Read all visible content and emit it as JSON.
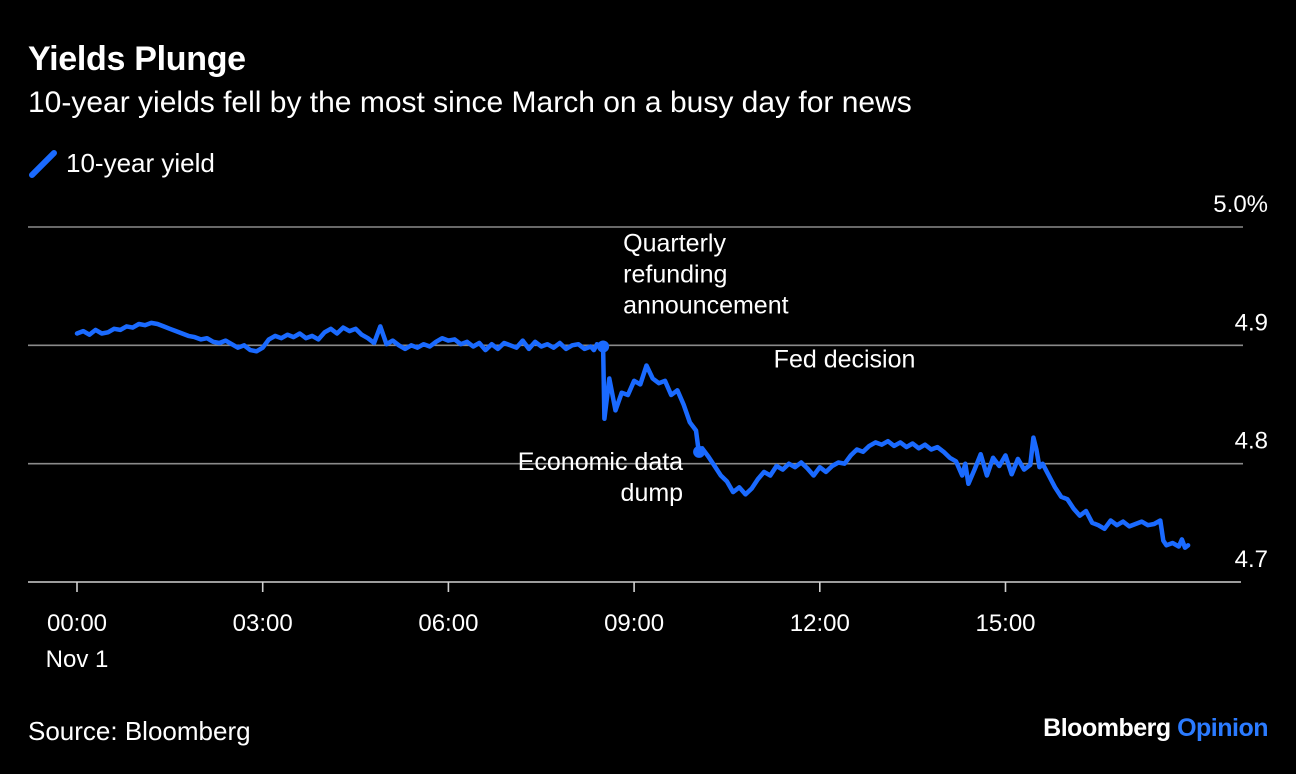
{
  "chart_data": {
    "type": "line",
    "title": "Yields Plunge",
    "subtitle": "10-year yields fell by the most since March on a busy day for news",
    "series": [
      {
        "name": "10-year yield",
        "color": "#1a6aff",
        "points": [
          [
            0.0,
            4.91
          ],
          [
            0.1,
            4.912
          ],
          [
            0.2,
            4.909
          ],
          [
            0.3,
            4.913
          ],
          [
            0.4,
            4.91
          ],
          [
            0.5,
            4.911
          ],
          [
            0.6,
            4.914
          ],
          [
            0.7,
            4.913
          ],
          [
            0.8,
            4.916
          ],
          [
            0.9,
            4.915
          ],
          [
            1.0,
            4.918
          ],
          [
            1.1,
            4.917
          ],
          [
            1.2,
            4.919
          ],
          [
            1.3,
            4.918
          ],
          [
            1.4,
            4.916
          ],
          [
            1.5,
            4.914
          ],
          [
            1.6,
            4.912
          ],
          [
            1.7,
            4.91
          ],
          [
            1.8,
            4.908
          ],
          [
            1.9,
            4.907
          ],
          [
            2.0,
            4.905
          ],
          [
            2.1,
            4.906
          ],
          [
            2.2,
            4.903
          ],
          [
            2.3,
            4.902
          ],
          [
            2.4,
            4.904
          ],
          [
            2.5,
            4.901
          ],
          [
            2.6,
            4.898
          ],
          [
            2.7,
            4.9
          ],
          [
            2.8,
            4.896
          ],
          [
            2.9,
            4.895
          ],
          [
            3.0,
            4.898
          ],
          [
            3.1,
            4.905
          ],
          [
            3.2,
            4.908
          ],
          [
            3.3,
            4.906
          ],
          [
            3.4,
            4.909
          ],
          [
            3.5,
            4.907
          ],
          [
            3.6,
            4.91
          ],
          [
            3.7,
            4.906
          ],
          [
            3.8,
            4.908
          ],
          [
            3.9,
            4.905
          ],
          [
            4.0,
            4.911
          ],
          [
            4.1,
            4.914
          ],
          [
            4.2,
            4.91
          ],
          [
            4.3,
            4.915
          ],
          [
            4.4,
            4.912
          ],
          [
            4.5,
            4.914
          ],
          [
            4.6,
            4.909
          ],
          [
            4.7,
            4.906
          ],
          [
            4.8,
            4.902
          ],
          [
            4.9,
            4.916
          ],
          [
            5.0,
            4.901
          ],
          [
            5.1,
            4.904
          ],
          [
            5.2,
            4.9
          ],
          [
            5.3,
            4.897
          ],
          [
            5.4,
            4.9
          ],
          [
            5.5,
            4.898
          ],
          [
            5.6,
            4.901
          ],
          [
            5.7,
            4.899
          ],
          [
            5.8,
            4.903
          ],
          [
            5.9,
            4.906
          ],
          [
            6.0,
            4.904
          ],
          [
            6.1,
            4.905
          ],
          [
            6.2,
            4.901
          ],
          [
            6.3,
            4.903
          ],
          [
            6.4,
            4.899
          ],
          [
            6.5,
            4.902
          ],
          [
            6.6,
            4.896
          ],
          [
            6.7,
            4.901
          ],
          [
            6.8,
            4.897
          ],
          [
            6.9,
            4.902
          ],
          [
            7.0,
            4.9
          ],
          [
            7.1,
            4.898
          ],
          [
            7.2,
            4.904
          ],
          [
            7.3,
            4.897
          ],
          [
            7.4,
            4.903
          ],
          [
            7.5,
            4.899
          ],
          [
            7.6,
            4.901
          ],
          [
            7.7,
            4.898
          ],
          [
            7.8,
            4.902
          ],
          [
            7.9,
            4.897
          ],
          [
            8.0,
            4.9
          ],
          [
            8.1,
            4.901
          ],
          [
            8.2,
            4.897
          ],
          [
            8.3,
            4.899
          ],
          [
            8.35,
            4.896
          ],
          [
            8.4,
            4.901
          ],
          [
            8.45,
            4.898
          ],
          [
            8.5,
            4.899
          ],
          [
            8.52,
            4.838
          ],
          [
            8.6,
            4.872
          ],
          [
            8.7,
            4.845
          ],
          [
            8.8,
            4.86
          ],
          [
            8.9,
            4.858
          ],
          [
            9.0,
            4.87
          ],
          [
            9.1,
            4.867
          ],
          [
            9.2,
            4.883
          ],
          [
            9.3,
            4.872
          ],
          [
            9.4,
            4.868
          ],
          [
            9.5,
            4.87
          ],
          [
            9.6,
            4.858
          ],
          [
            9.7,
            4.862
          ],
          [
            9.8,
            4.85
          ],
          [
            9.9,
            4.835
          ],
          [
            10.0,
            4.828
          ],
          [
            10.05,
            4.808
          ],
          [
            10.1,
            4.813
          ],
          [
            10.2,
            4.806
          ],
          [
            10.3,
            4.798
          ],
          [
            10.4,
            4.79
          ],
          [
            10.5,
            4.785
          ],
          [
            10.6,
            4.776
          ],
          [
            10.7,
            4.78
          ],
          [
            10.8,
            4.774
          ],
          [
            10.9,
            4.779
          ],
          [
            11.0,
            4.787
          ],
          [
            11.1,
            4.793
          ],
          [
            11.2,
            4.79
          ],
          [
            11.3,
            4.798
          ],
          [
            11.4,
            4.795
          ],
          [
            11.5,
            4.8
          ],
          [
            11.6,
            4.797
          ],
          [
            11.7,
            4.801
          ],
          [
            11.8,
            4.796
          ],
          [
            11.9,
            4.79
          ],
          [
            12.0,
            4.797
          ],
          [
            12.1,
            4.793
          ],
          [
            12.2,
            4.798
          ],
          [
            12.3,
            4.801
          ],
          [
            12.4,
            4.8
          ],
          [
            12.5,
            4.807
          ],
          [
            12.6,
            4.812
          ],
          [
            12.7,
            4.81
          ],
          [
            12.8,
            4.815
          ],
          [
            12.9,
            4.818
          ],
          [
            13.0,
            4.816
          ],
          [
            13.1,
            4.819
          ],
          [
            13.2,
            4.815
          ],
          [
            13.3,
            4.818
          ],
          [
            13.4,
            4.814
          ],
          [
            13.5,
            4.817
          ],
          [
            13.6,
            4.813
          ],
          [
            13.7,
            4.816
          ],
          [
            13.8,
            4.812
          ],
          [
            13.9,
            4.814
          ],
          [
            14.0,
            4.81
          ],
          [
            14.1,
            4.805
          ],
          [
            14.2,
            4.802
          ],
          [
            14.3,
            4.79
          ],
          [
            14.35,
            4.8
          ],
          [
            14.4,
            4.783
          ],
          [
            14.5,
            4.795
          ],
          [
            14.6,
            4.808
          ],
          [
            14.7,
            4.79
          ],
          [
            14.8,
            4.805
          ],
          [
            14.9,
            4.798
          ],
          [
            15.0,
            4.807
          ],
          [
            15.1,
            4.791
          ],
          [
            15.2,
            4.804
          ],
          [
            15.3,
            4.795
          ],
          [
            15.4,
            4.799
          ],
          [
            15.45,
            4.822
          ],
          [
            15.5,
            4.812
          ],
          [
            15.55,
            4.797
          ],
          [
            15.6,
            4.8
          ],
          [
            15.7,
            4.79
          ],
          [
            15.8,
            4.78
          ],
          [
            15.9,
            4.772
          ],
          [
            16.0,
            4.77
          ],
          [
            16.1,
            4.762
          ],
          [
            16.2,
            4.756
          ],
          [
            16.3,
            4.76
          ],
          [
            16.4,
            4.75
          ],
          [
            16.5,
            4.748
          ],
          [
            16.6,
            4.745
          ],
          [
            16.7,
            4.752
          ],
          [
            16.8,
            4.748
          ],
          [
            16.9,
            4.751
          ],
          [
            17.0,
            4.747
          ],
          [
            17.1,
            4.749
          ],
          [
            17.2,
            4.751
          ],
          [
            17.3,
            4.748
          ],
          [
            17.4,
            4.749
          ],
          [
            17.5,
            4.752
          ],
          [
            17.55,
            4.735
          ],
          [
            17.6,
            4.731
          ],
          [
            17.7,
            4.733
          ],
          [
            17.8,
            4.73
          ],
          [
            17.85,
            4.736
          ],
          [
            17.9,
            4.729
          ],
          [
            17.95,
            4.731
          ]
        ]
      }
    ],
    "xlabel": "",
    "ylabel": "",
    "ylim": [
      4.7,
      5.0
    ],
    "xlim": [
      0.0,
      18.0
    ],
    "y_ticks": [
      {
        "value": 5.0,
        "label": "5.0%"
      },
      {
        "value": 4.9,
        "label": "4.9"
      },
      {
        "value": 4.8,
        "label": "4.8"
      },
      {
        "value": 4.7,
        "label": "4.7"
      }
    ],
    "x_ticks": [
      {
        "value": 0,
        "label": "00:00",
        "sublabel": "Nov 1"
      },
      {
        "value": 3,
        "label": "03:00",
        "sublabel": ""
      },
      {
        "value": 6,
        "label": "06:00",
        "sublabel": ""
      },
      {
        "value": 9,
        "label": "09:00",
        "sublabel": ""
      },
      {
        "value": 12,
        "label": "12:00",
        "sublabel": ""
      },
      {
        "value": 15,
        "label": "15:00",
        "sublabel": ""
      }
    ],
    "annotations": [
      {
        "x": 8.5,
        "y": 4.899,
        "lines": [
          "Quarterly",
          "refunding",
          "announcement"
        ],
        "marker": true
      },
      {
        "x": 10.05,
        "y": 4.81,
        "lines": [
          "Economic data",
          "dump"
        ],
        "marker": true
      },
      {
        "x": 12.4,
        "y": 4.845,
        "lines": [
          "Fed decision"
        ],
        "marker": false
      }
    ],
    "grid": true,
    "legend_position": "top-left"
  },
  "legend_label": "10-year yield",
  "source": "Source: Bloomberg",
  "brand": {
    "name": "Bloomberg",
    "accent": "Opinion",
    "accent_color": "#2b7bff"
  }
}
